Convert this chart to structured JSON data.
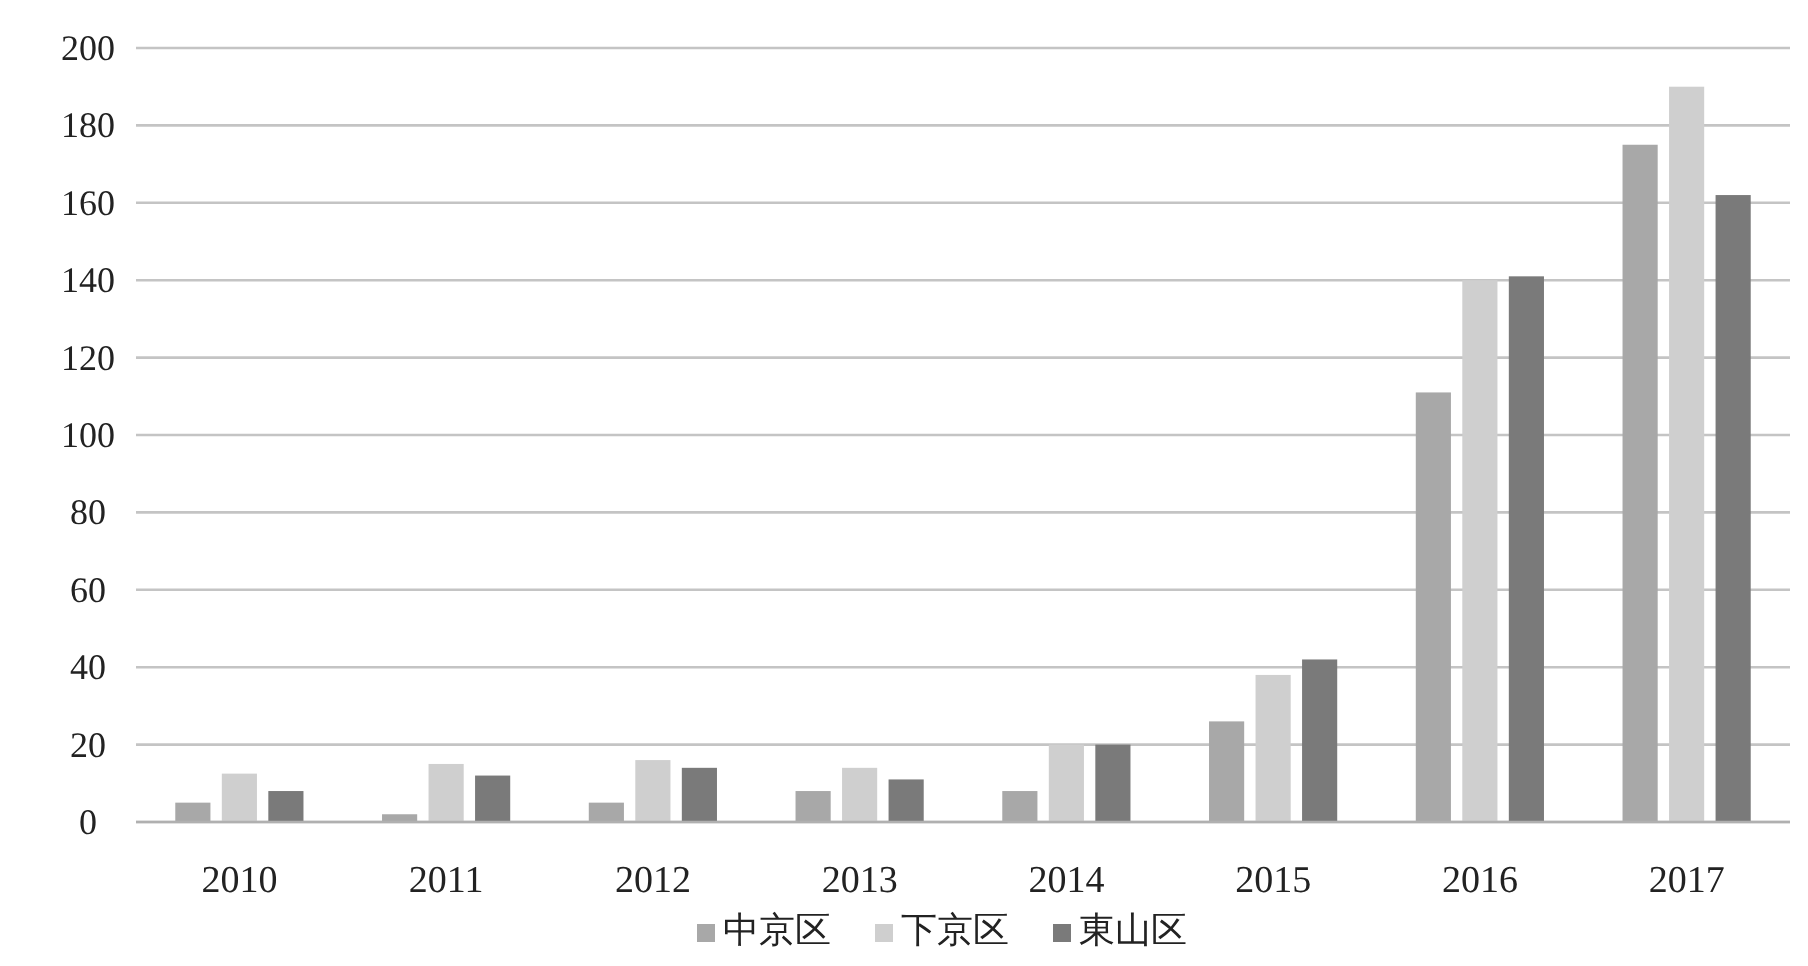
{
  "chart_data": {
    "type": "bar",
    "categories": [
      "2010",
      "2011",
      "2012",
      "2013",
      "2014",
      "2015",
      "2016",
      "2017"
    ],
    "series": [
      {
        "name": "中京区",
        "color": "#a8a8a8",
        "values": [
          5,
          2,
          5,
          8,
          8,
          26,
          111,
          175
        ]
      },
      {
        "name": "下京区",
        "color": "#cfcfcf",
        "values": [
          12.5,
          15,
          16,
          14,
          20,
          38,
          140,
          190
        ]
      },
      {
        "name": "東山区",
        "color": "#7a7a7a",
        "values": [
          8,
          12,
          14,
          11,
          20,
          42,
          141,
          162
        ]
      }
    ],
    "ylim": [
      0,
      200
    ],
    "yticks": [
      0,
      20,
      40,
      60,
      80,
      100,
      120,
      140,
      160,
      180,
      200
    ],
    "grid": "y",
    "legend": "bottom"
  }
}
